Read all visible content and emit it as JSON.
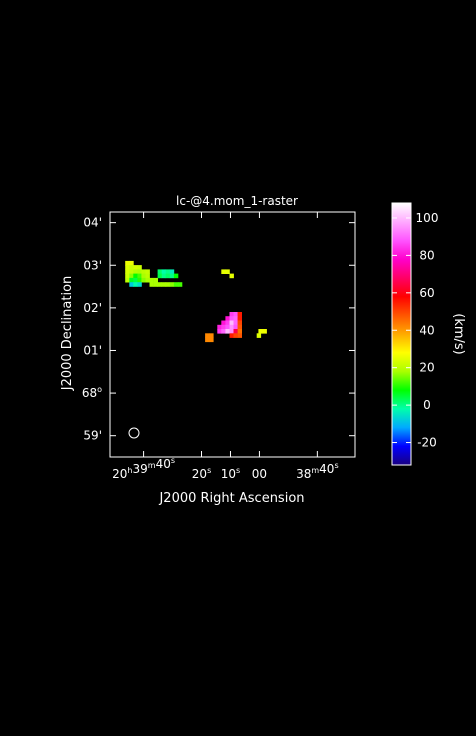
{
  "chart_data": {
    "type": "heatmap",
    "title": "lc-@4.mom_1-raster",
    "xlabel": "J2000 Right Ascension",
    "ylabel": "J2000 Declination",
    "colorbar_label": "(km/s)",
    "x_ticks": [
      {
        "base": "20",
        "sup1": "h",
        "mid": "39",
        "sup2": "m",
        "end": "40",
        "sup3": "s"
      },
      {
        "base": "",
        "sup1": "",
        "mid": "",
        "sup2": "",
        "end": "20",
        "sup3": "s"
      },
      {
        "base": "",
        "sup1": "",
        "mid": "",
        "sup2": "",
        "end": "10",
        "sup3": "s"
      },
      {
        "base": "",
        "sup1": "",
        "mid": "",
        "sup2": "",
        "end": "00",
        "sup3": ""
      },
      {
        "base": "",
        "sup1": "",
        "mid": "38",
        "sup2": "m",
        "end": "40",
        "sup3": "s"
      }
    ],
    "y_ticks": [
      {
        "text": "04'",
        "sup": ""
      },
      {
        "text": "03'",
        "sup": ""
      },
      {
        "text": "02'",
        "sup": ""
      },
      {
        "text": "01'",
        "sup": ""
      },
      {
        "text": "68",
        "sup": "o"
      },
      {
        "text": "59'",
        "sup": ""
      }
    ],
    "colorbar_ticks": [
      "100",
      "80",
      "60",
      "40",
      "20",
      "0",
      "-20"
    ],
    "colorbar_range": [
      -32,
      108
    ],
    "colorbar_tick_values": [
      100,
      80,
      60,
      40,
      20,
      0,
      -20
    ],
    "colormap": [
      "#1a0080",
      "#0000ff",
      "#00aaff",
      "#00ffaa",
      "#00ff00",
      "#aaff00",
      "#ffff00",
      "#ffaa00",
      "#ff5500",
      "#ff0000",
      "#ff0066",
      "#ff00cc",
      "#ff55ff",
      "#ffaaff",
      "#ffffff"
    ],
    "beam": "circle",
    "pixels": [
      {
        "ra": 45.6,
        "dec": 3.05,
        "v": 26
      },
      {
        "ra": 44.2,
        "dec": 3.05,
        "v": 26
      },
      {
        "ra": 45.6,
        "dec": 2.95,
        "v": 24
      },
      {
        "ra": 44.2,
        "dec": 2.95,
        "v": 22
      },
      {
        "ra": 42.8,
        "dec": 2.95,
        "v": 23
      },
      {
        "ra": 41.4,
        "dec": 2.95,
        "v": 22
      },
      {
        "ra": 45.6,
        "dec": 2.85,
        "v": 23
      },
      {
        "ra": 44.2,
        "dec": 2.85,
        "v": 21
      },
      {
        "ra": 42.8,
        "dec": 2.85,
        "v": 19
      },
      {
        "ra": 41.4,
        "dec": 2.85,
        "v": 18
      },
      {
        "ra": 40.0,
        "dec": 2.85,
        "v": 20
      },
      {
        "ra": 38.6,
        "dec": 2.85,
        "v": 21
      },
      {
        "ra": 45.6,
        "dec": 2.75,
        "v": 22
      },
      {
        "ra": 44.2,
        "dec": 2.75,
        "v": 16
      },
      {
        "ra": 42.8,
        "dec": 2.75,
        "v": 8
      },
      {
        "ra": 41.4,
        "dec": 2.75,
        "v": 12
      },
      {
        "ra": 40.0,
        "dec": 2.75,
        "v": 18
      },
      {
        "ra": 38.6,
        "dec": 2.75,
        "v": 20
      },
      {
        "ra": 45.6,
        "dec": 2.65,
        "v": 20
      },
      {
        "ra": 44.2,
        "dec": 2.65,
        "v": 6
      },
      {
        "ra": 42.8,
        "dec": 2.65,
        "v": 4
      },
      {
        "ra": 41.4,
        "dec": 2.65,
        "v": 10
      },
      {
        "ra": 40.0,
        "dec": 2.65,
        "v": 16
      },
      {
        "ra": 38.6,
        "dec": 2.65,
        "v": 18
      },
      {
        "ra": 37.2,
        "dec": 2.65,
        "v": 18
      },
      {
        "ra": 35.8,
        "dec": 2.65,
        "v": 18
      },
      {
        "ra": 44.2,
        "dec": 2.55,
        "v": -8
      },
      {
        "ra": 42.8,
        "dec": 2.55,
        "v": -2
      },
      {
        "ra": 41.4,
        "dec": 2.55,
        "v": -6
      },
      {
        "ra": 34.4,
        "dec": 2.85,
        "v": 2
      },
      {
        "ra": 33.0,
        "dec": 2.85,
        "v": -2
      },
      {
        "ra": 31.6,
        "dec": 2.85,
        "v": 0
      },
      {
        "ra": 30.2,
        "dec": 2.85,
        "v": -4
      },
      {
        "ra": 34.4,
        "dec": 2.75,
        "v": 4
      },
      {
        "ra": 33.0,
        "dec": 2.75,
        "v": 0
      },
      {
        "ra": 31.6,
        "dec": 2.75,
        "v": 2
      },
      {
        "ra": 30.2,
        "dec": 2.75,
        "v": 0
      },
      {
        "ra": 28.8,
        "dec": 2.75,
        "v": 8
      },
      {
        "ra": 37.2,
        "dec": 2.55,
        "v": 18
      },
      {
        "ra": 35.8,
        "dec": 2.55,
        "v": 18
      },
      {
        "ra": 34.4,
        "dec": 2.55,
        "v": 18
      },
      {
        "ra": 33.0,
        "dec": 2.55,
        "v": 18
      },
      {
        "ra": 31.6,
        "dec": 2.55,
        "v": 18
      },
      {
        "ra": 30.2,
        "dec": 2.55,
        "v": 16
      },
      {
        "ra": 28.8,
        "dec": 2.55,
        "v": 12
      },
      {
        "ra": 27.4,
        "dec": 2.55,
        "v": 12
      },
      {
        "ra": 12.4,
        "dec": 2.85,
        "v": 25
      },
      {
        "ra": 11.0,
        "dec": 2.85,
        "v": 25
      },
      {
        "ra": 9.6,
        "dec": 2.75,
        "v": 25
      },
      {
        "ra": 9.6,
        "dec": 1.85,
        "v": 85
      },
      {
        "ra": 8.2,
        "dec": 1.85,
        "v": 88
      },
      {
        "ra": 6.8,
        "dec": 1.85,
        "v": 55
      },
      {
        "ra": 11.0,
        "dec": 1.75,
        "v": 80
      },
      {
        "ra": 9.6,
        "dec": 1.75,
        "v": 88
      },
      {
        "ra": 8.2,
        "dec": 1.75,
        "v": 90
      },
      {
        "ra": 6.8,
        "dec": 1.75,
        "v": 55
      },
      {
        "ra": 12.4,
        "dec": 1.65,
        "v": 80
      },
      {
        "ra": 11.0,
        "dec": 1.65,
        "v": 85
      },
      {
        "ra": 9.6,
        "dec": 1.65,
        "v": 100
      },
      {
        "ra": 8.2,
        "dec": 1.65,
        "v": 90
      },
      {
        "ra": 6.8,
        "dec": 1.65,
        "v": 50
      },
      {
        "ra": 13.8,
        "dec": 1.55,
        "v": 82
      },
      {
        "ra": 12.4,
        "dec": 1.55,
        "v": 85
      },
      {
        "ra": 11.0,
        "dec": 1.55,
        "v": 88
      },
      {
        "ra": 9.6,
        "dec": 1.55,
        "v": 95
      },
      {
        "ra": 8.2,
        "dec": 1.55,
        "v": 88
      },
      {
        "ra": 6.8,
        "dec": 1.55,
        "v": 48
      },
      {
        "ra": 13.8,
        "dec": 1.45,
        "v": 85
      },
      {
        "ra": 12.4,
        "dec": 1.45,
        "v": 90
      },
      {
        "ra": 11.0,
        "dec": 1.45,
        "v": 100
      },
      {
        "ra": 9.6,
        "dec": 1.45,
        "v": 95
      },
      {
        "ra": 8.2,
        "dec": 1.45,
        "v": 65
      },
      {
        "ra": 6.8,
        "dec": 1.45,
        "v": 45
      },
      {
        "ra": 9.6,
        "dec": 1.35,
        "v": 55
      },
      {
        "ra": 8.2,
        "dec": 1.35,
        "v": 50
      },
      {
        "ra": 6.8,
        "dec": 1.35,
        "v": 48
      },
      {
        "ra": 18.0,
        "dec": 1.35,
        "v": 42
      },
      {
        "ra": 16.6,
        "dec": 1.35,
        "v": 42
      },
      {
        "ra": 18.0,
        "dec": 1.25,
        "v": 42
      },
      {
        "ra": 16.6,
        "dec": 1.25,
        "v": 42
      },
      {
        "ra": -0.4,
        "dec": 1.45,
        "v": 26
      },
      {
        "ra": -1.8,
        "dec": 1.45,
        "v": 26
      },
      {
        "ra": 0.2,
        "dec": 1.35,
        "v": 24
      }
    ]
  }
}
